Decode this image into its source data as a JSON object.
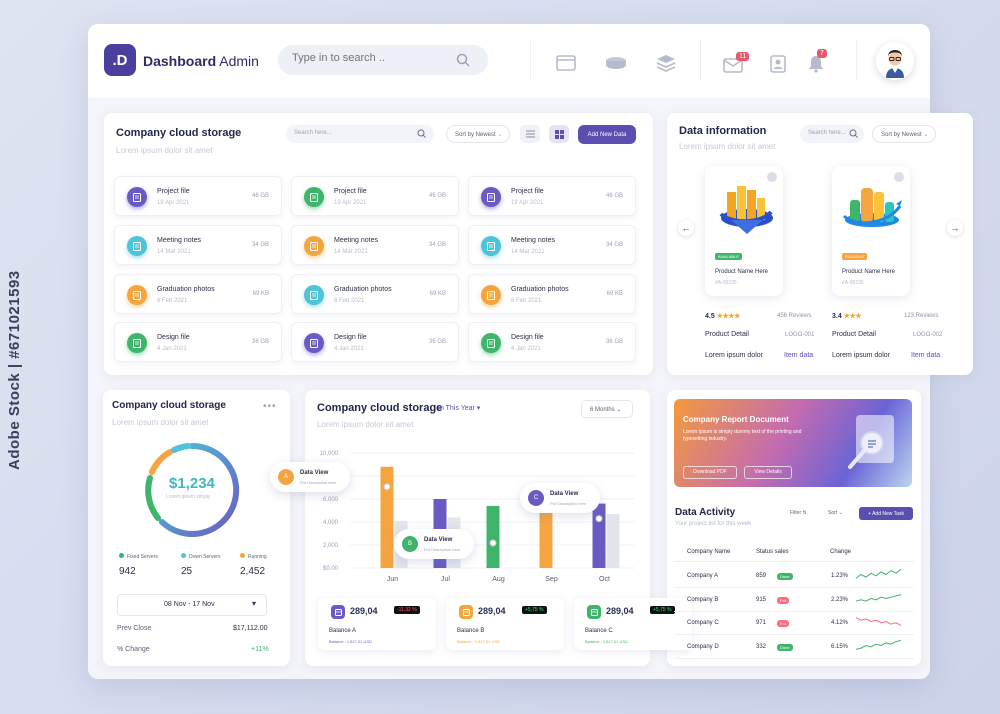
{
  "watermark": "Adobe Stock | #671021593",
  "header": {
    "logo": ".D",
    "title_bold": "Dashboard",
    "title_rest": " Admin",
    "search_placeholder": "Type in to search ..",
    "mail_count": "11",
    "notif_count": "7"
  },
  "storage": {
    "title": "Company cloud storage",
    "subtitle": "Lorem ipsum dolor sit amet",
    "search_placeholder": "Search here...",
    "sort": "Sort by Newest",
    "add_btn": "Add New Data",
    "files": [
      {
        "name": "Project file",
        "date": "19 Apr 2021",
        "size": "46 GB",
        "color": "#6a5bc4",
        "icon": "file-icon"
      },
      {
        "name": "Project file",
        "date": "19 Apr 2021",
        "size": "46 GB",
        "color": "#3fb56b",
        "icon": "file-icon"
      },
      {
        "name": "Project file",
        "date": "19 Apr 2021",
        "size": "46 GB",
        "color": "#6a5bc4",
        "icon": "file-icon"
      },
      {
        "name": "Meeting notes",
        "date": "14 Mar 2021",
        "size": "34 GB",
        "color": "#4ec3d9",
        "icon": "film-icon"
      },
      {
        "name": "Meeting notes",
        "date": "14 Mar 2021",
        "size": "34 GB",
        "color": "#f5a53f",
        "icon": "film-icon"
      },
      {
        "name": "Meeting notes",
        "date": "14 Mar 2021",
        "size": "34 GB",
        "color": "#4ec3d9",
        "icon": "film-icon"
      },
      {
        "name": "Graduation photos",
        "date": "6 Feb 2021",
        "size": "69 KB",
        "color": "#f5a53f",
        "icon": "image-icon"
      },
      {
        "name": "Graduation photos",
        "date": "6 Feb 2021",
        "size": "69 KB",
        "color": "#4ec3d9",
        "icon": "image-icon"
      },
      {
        "name": "Graduation photos",
        "date": "6 Feb 2021",
        "size": "69 KB",
        "color": "#f5a53f",
        "icon": "image-icon"
      },
      {
        "name": "Design file",
        "date": "4 Jan 2021",
        "size": "36 GB",
        "color": "#3fb56b",
        "icon": "tag-icon"
      },
      {
        "name": "Design file",
        "date": "4 Jan 2021",
        "size": "36 GB",
        "color": "#6a5bc4",
        "icon": "tag-icon"
      },
      {
        "name": "Design file",
        "date": "4 Jan 2021",
        "size": "36 GB",
        "color": "#3fb56b",
        "icon": "tag-icon"
      }
    ]
  },
  "datainfo": {
    "title": "Data information",
    "subtitle": "Lorem ipsum dolor sit amet",
    "search_placeholder": "Search here...",
    "sort": "Sort by Newest",
    "products": [
      {
        "tag": "AVAILABLE",
        "tag_color": "#3fb56b",
        "name": "Product Name Here",
        "code": "#A-00235",
        "rating": "4.5",
        "reviews": "456 Reviews",
        "detail": "Product Detail",
        "logo": "LOGO-001",
        "lorem": "Lorem ipsum dolor",
        "item": "Item data"
      },
      {
        "tag": "SOLDOUT",
        "tag_color": "#f5a53f",
        "name": "Product Name Here",
        "code": "#A-00235",
        "rating": "3.4",
        "reviews": "123 Reviews",
        "detail": "Product Detail",
        "logo": "LOGO-002",
        "lorem": "Lorem ipsum dolor",
        "item": "Item data"
      }
    ]
  },
  "donut": {
    "title": "Company cloud storage",
    "subtitle": "Lorem ipsum dolor sit amet",
    "value": "$1,234",
    "caption": "Lorem ipsum simply",
    "legend": [
      {
        "label": "Fixed Servers",
        "value": "942",
        "color": "#2fb38a"
      },
      {
        "label": "Down Servers",
        "value": "25",
        "color": "#4ec3d9"
      },
      {
        "label": "Running",
        "value": "2,452",
        "color": "#f5a53f"
      }
    ],
    "date_range": "08 Nov - 17 Nov",
    "prev_label": "Prev Close",
    "prev_value": "$17,112.00",
    "change_label": "% Change",
    "change_value": "+11%"
  },
  "barchart": {
    "title": "Company cloud storage",
    "filter": "In This Year",
    "subtitle": "Lorem ipsum dolor sit amet",
    "period": "6 Months",
    "tooltips": [
      {
        "letter": "A",
        "title": "Data View",
        "sub": "Put Description here",
        "color": "#f5a53f"
      },
      {
        "letter": "B",
        "title": "Data View",
        "sub": "Put Description here",
        "color": "#3fb56b"
      },
      {
        "letter": "C",
        "title": "Data View",
        "sub": "Put Description here",
        "color": "#6a5bc4"
      }
    ],
    "balances": [
      {
        "value": "289,04",
        "ticker": "-11,32 %",
        "ticker_color": "#ff5a6a",
        "label": "Balance A",
        "sub": "Balance : 1,517,01 USD",
        "color": "#6a5bc4"
      },
      {
        "value": "289,04",
        "ticker": "+5,75 %",
        "ticker_color": "#3fe07a",
        "label": "Balance B",
        "sub": "Balance : 1,517,01 USD",
        "color": "#f5a53f"
      },
      {
        "value": "289,04",
        "ticker": "+5,75 %",
        "ticker_color": "#3fe07a",
        "label": "Balance C",
        "sub": "Balance : 1,517,01 USD",
        "color": "#3fb56b"
      }
    ]
  },
  "chart_data": {
    "type": "bar",
    "categories": [
      "Jun",
      "Jul",
      "Aug",
      "Sep",
      "Oct"
    ],
    "ytick_labels": [
      "$0.00",
      "2,000",
      "4,000",
      "6,000",
      "8,000",
      "10,000"
    ],
    "ylim": [
      0,
      10000
    ],
    "series": [
      {
        "values": [
          8800,
          6000,
          5400,
          6400,
          5600
        ],
        "colors": [
          "#f5a53f",
          "#6a5bc4",
          "#3fb56b",
          "#f5a53f",
          "#6a5bc4"
        ]
      },
      {
        "values": [
          4100,
          4400,
          0,
          0,
          4700
        ],
        "color": "#e3e5ec"
      }
    ]
  },
  "report": {
    "title": "Company Report Document",
    "text": "Lorem Ipsum is simply dummy text of the printing and typesetting industry.",
    "btn1": "Download PDF",
    "btn2": "View Details"
  },
  "activity": {
    "title": "Data Activity",
    "subtitle": "Your project list for this week",
    "filter": "Filter",
    "sort": "Sort",
    "add": "+ Add New Task",
    "headers": [
      "Company Name",
      "Status sales",
      "Change"
    ],
    "rows": [
      {
        "name": "Company A",
        "val": "859",
        "status": "Done",
        "status_color": "#3fb56b",
        "change": "1.23%",
        "trend": "#3fb56b"
      },
      {
        "name": "Company B",
        "val": "915",
        "status": "Fail",
        "status_color": "#ff6b7a",
        "change": "2.23%",
        "trend": "#3fb56b"
      },
      {
        "name": "Company C",
        "val": "971",
        "status": "Fail",
        "status_color": "#ff6b7a",
        "change": "4.12%",
        "trend": "#ff6b7a"
      },
      {
        "name": "Company D",
        "val": "332",
        "status": "Done",
        "status_color": "#3fb56b",
        "change": "6.15%",
        "trend": "#3fb56b"
      }
    ]
  }
}
